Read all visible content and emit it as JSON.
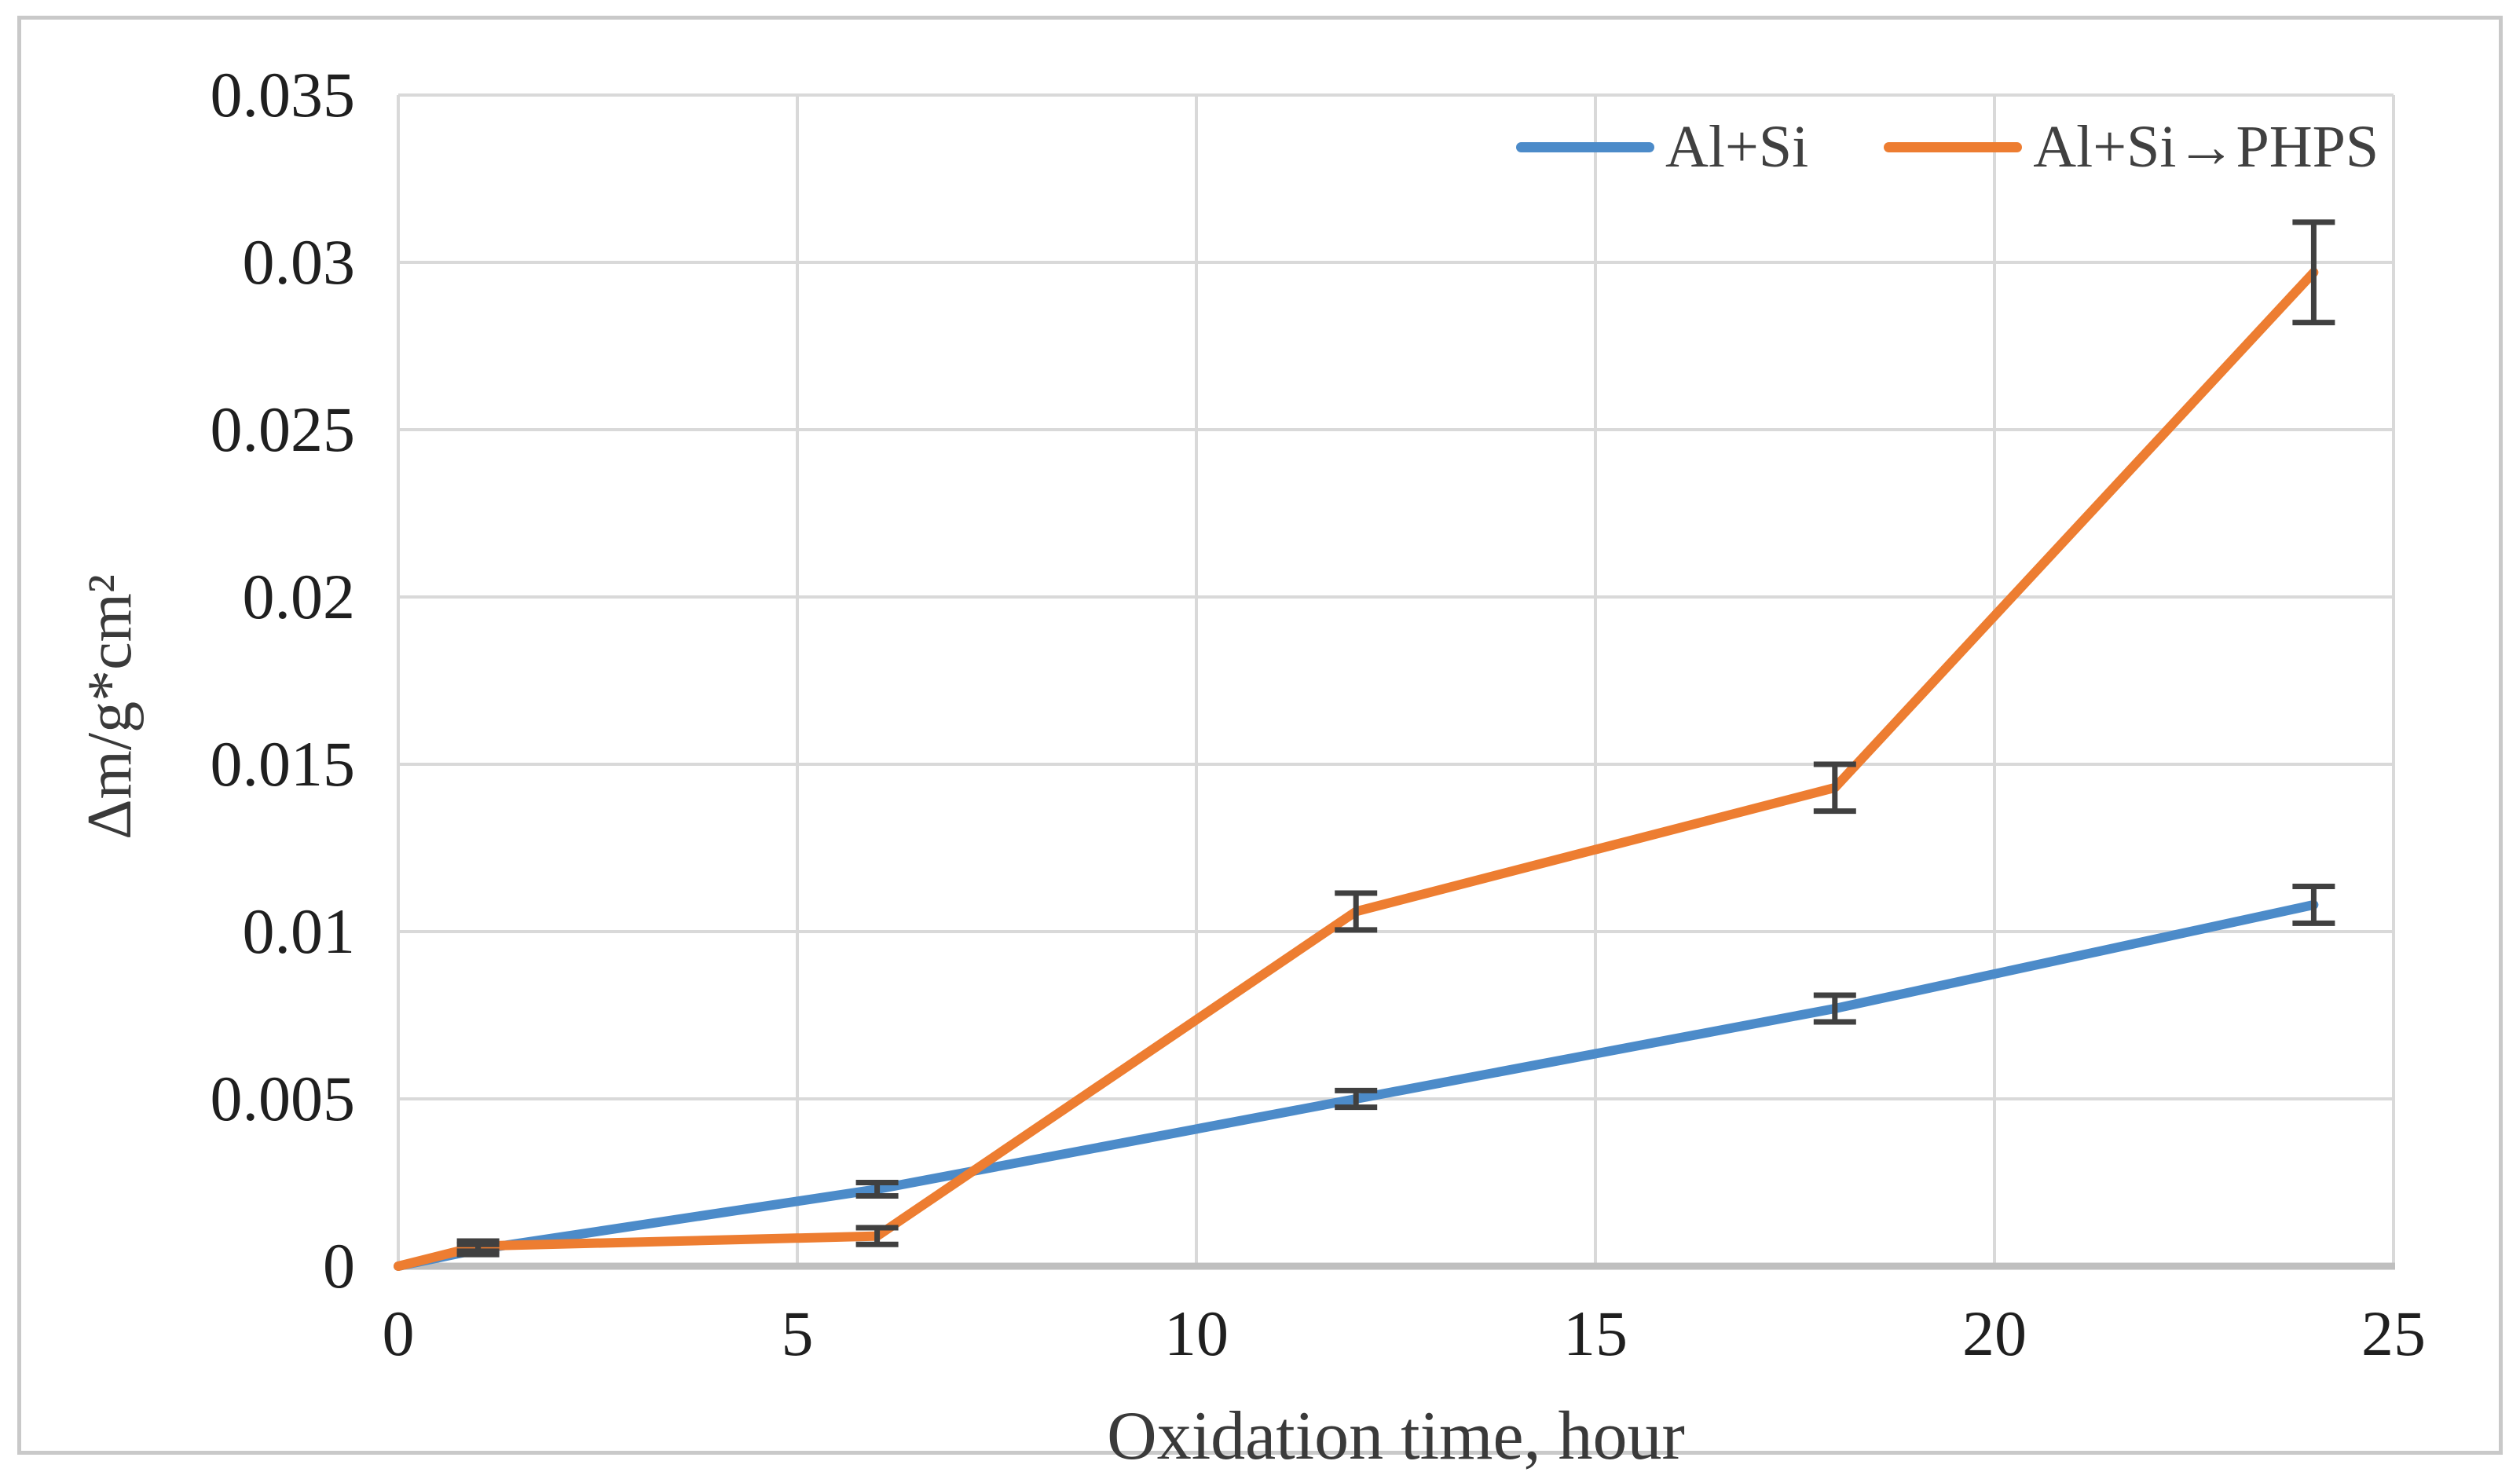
{
  "page": {
    "background": "#ffffff",
    "frame_color": "#c9c9c9"
  },
  "chart_data": {
    "type": "line",
    "title": "",
    "xlabel": "Oxidation time, hour",
    "ylabel": "Δm/g*cm²",
    "xlim": [
      0,
      25
    ],
    "ylim": [
      0,
      0.035
    ],
    "grid": true,
    "legend_position": "top-right-inside",
    "x_ticks": {
      "values": [
        0,
        5,
        10,
        15,
        20,
        25
      ],
      "labels": [
        "0",
        "5",
        "10",
        "15",
        "20",
        "25"
      ]
    },
    "y_ticks": {
      "values": [
        0,
        0.005,
        0.01,
        0.015,
        0.02,
        0.025,
        0.03,
        0.035
      ],
      "labels": [
        "0",
        "0.005",
        "0.01",
        "0.015",
        "0.02",
        "0.025",
        "0.03",
        "0.035"
      ]
    },
    "colors": {
      "gridline": "#d9d9d9",
      "axis_line": "#bfbfbf",
      "error_bar": "#404040",
      "tick_text": "#1f1f1f"
    },
    "series": [
      {
        "name": "Al+Si",
        "color": "#4c8bc9",
        "x": [
          0,
          1,
          6,
          12,
          18,
          24
        ],
        "y": [
          0,
          0.0005,
          0.0023,
          0.005,
          0.0077,
          0.0108
        ],
        "yerr": [
          0,
          0.00015,
          0.0002,
          0.00025,
          0.0004,
          0.00055
        ]
      },
      {
        "name": "Al+Si→PHPS",
        "color": "#ed7d31",
        "x": [
          0,
          1,
          6,
          12,
          18,
          24
        ],
        "y": [
          0,
          0.0006,
          0.0009,
          0.0106,
          0.0143,
          0.0297
        ],
        "yerr": [
          0,
          0.00015,
          0.00025,
          0.00055,
          0.0007,
          0.0015
        ]
      }
    ]
  }
}
